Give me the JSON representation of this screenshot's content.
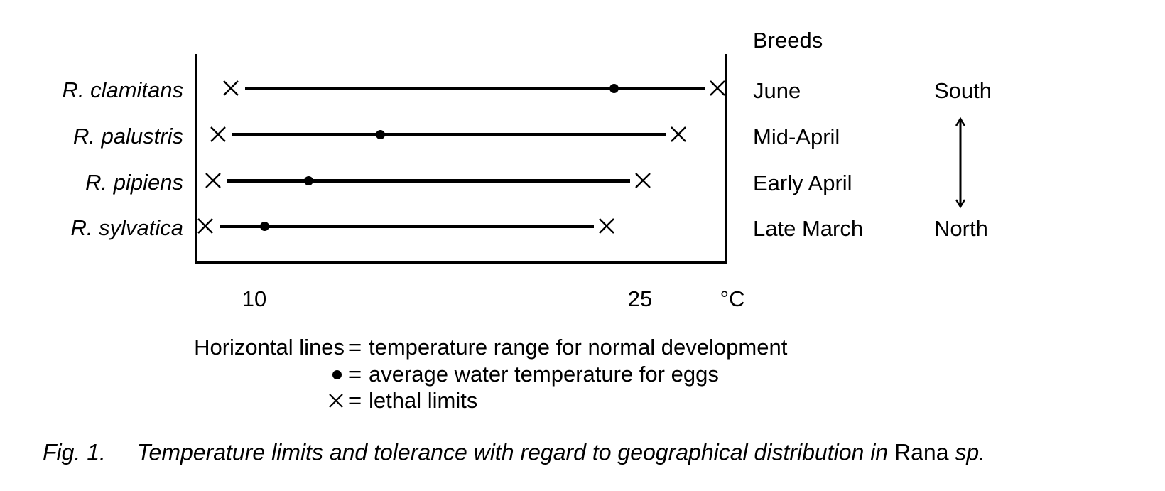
{
  "chart_data": {
    "type": "line",
    "subtype": "horizontal-temperature-range-dumbbell",
    "title": "",
    "xlabel": "°C",
    "ylabel": "",
    "x_ticks": [
      10,
      25
    ],
    "x_tick_labels": [
      "10",
      "25"
    ],
    "xlim": [
      7.7,
      28.3
    ],
    "grid": false,
    "series": [
      {
        "species": "R. clamitans",
        "breeds": "June",
        "lethal_min_c": 9.1,
        "avg_egg_temp_c": 24.0,
        "lethal_max_c": 28.0
      },
      {
        "species": "R. palustris",
        "breeds": "Mid-April",
        "lethal_min_c": 8.6,
        "avg_egg_temp_c": 14.9,
        "lethal_max_c": 26.5
      },
      {
        "species": "R. pipiens",
        "breeds": "Early April",
        "lethal_min_c": 8.4,
        "avg_egg_temp_c": 12.1,
        "lethal_max_c": 25.1
      },
      {
        "species": "R. sylvatica",
        "breeds": "Late March",
        "lethal_min_c": 8.1,
        "avg_egg_temp_c": 10.4,
        "lethal_max_c": 23.7
      }
    ],
    "annotations": {
      "breeds_column_header": "Breeds",
      "geographic_gradient": "South to North double-headed arrow"
    },
    "colors": {
      "ink": "#000000",
      "background": "#ffffff"
    }
  },
  "axis": {
    "tick_10": "10",
    "tick_25": "25",
    "unit": "°C"
  },
  "breeds": {
    "header": "Breeds"
  },
  "geography": {
    "south": "South",
    "north": "North"
  },
  "legend": {
    "eq": "=",
    "rows": [
      {
        "symbol": "none",
        "left": "Horizontal lines",
        "right": "temperature range for normal development"
      },
      {
        "symbol": "dot-icon",
        "left": "•",
        "right": "average water temperature for eggs"
      },
      {
        "symbol": "x-icon",
        "left": "✕",
        "right": "lethal limits"
      }
    ]
  },
  "caption": {
    "label": "Fig. 1.",
    "body": "Temperature limits and tolerance with regard to geographical distribution in ",
    "genus": "Rana",
    "suffix": " sp."
  }
}
